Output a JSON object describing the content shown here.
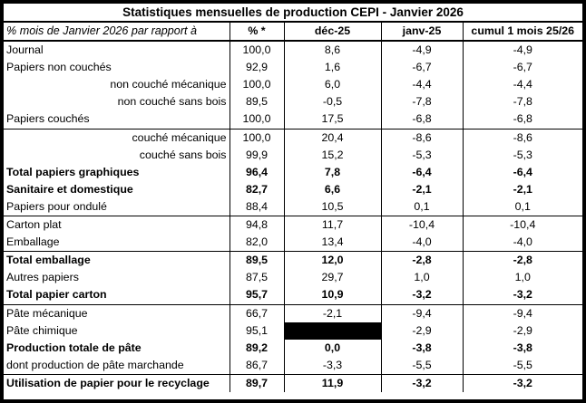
{
  "title": "Statistiques mensuelles de production CEPI - Janvier 2026",
  "colors": {
    "border": "#000000",
    "text": "#000000",
    "background": "#ffffff",
    "redacted_cell": "#000000"
  },
  "table": {
    "columns": [
      {
        "label": "% mois de Janvier 2026 par rapport à"
      },
      {
        "label": "% *"
      },
      {
        "label": "déc-25"
      },
      {
        "label": "janv-25"
      },
      {
        "label": "cumul 1 mois 25/26"
      }
    ],
    "rows": [
      {
        "label": "Journal",
        "values": [
          "100,0",
          "8,6",
          "-4,9",
          "-4,9"
        ],
        "bold": false,
        "indent": false,
        "section_start": false
      },
      {
        "label": "Papiers non couchés",
        "values": [
          "92,9",
          "1,6",
          "-6,7",
          "-6,7"
        ],
        "bold": false,
        "indent": false,
        "section_start": false
      },
      {
        "label": "non couché mécanique",
        "values": [
          "100,0",
          "6,0",
          "-4,4",
          "-4,4"
        ],
        "bold": false,
        "indent": true,
        "section_start": false
      },
      {
        "label": "non couché sans bois",
        "values": [
          "89,5",
          "-0,5",
          "-7,8",
          "-7,8"
        ],
        "bold": false,
        "indent": true,
        "section_start": false
      },
      {
        "label": "Papiers couchés",
        "values": [
          "100,0",
          "17,5",
          "-6,8",
          "-6,8"
        ],
        "bold": false,
        "indent": false,
        "section_start": false
      },
      {
        "label": "couché mécanique",
        "values": [
          "100,0",
          "20,4",
          "-8,6",
          "-8,6"
        ],
        "bold": false,
        "indent": true,
        "section_start": true
      },
      {
        "label": "couché sans bois",
        "values": [
          "99,9",
          "15,2",
          "-5,3",
          "-5,3"
        ],
        "bold": false,
        "indent": true,
        "section_start": false
      },
      {
        "label": "Total papiers graphiques",
        "values": [
          "96,4",
          "7,8",
          "-6,4",
          "-6,4"
        ],
        "bold": true,
        "indent": false,
        "section_start": false
      },
      {
        "label": "Sanitaire et domestique",
        "values": [
          "82,7",
          "6,6",
          "-2,1",
          "-2,1"
        ],
        "bold": true,
        "indent": false,
        "section_start": false
      },
      {
        "label": "Papiers pour ondulé",
        "values": [
          "88,4",
          "10,5",
          "0,1",
          "0,1"
        ],
        "bold": false,
        "indent": false,
        "section_start": false
      },
      {
        "label": "Carton plat",
        "values": [
          "94,8",
          "11,7",
          "-10,4",
          "-10,4"
        ],
        "bold": false,
        "indent": false,
        "section_start": true
      },
      {
        "label": "Emballage",
        "values": [
          "82,0",
          "13,4",
          "-4,0",
          "-4,0"
        ],
        "bold": false,
        "indent": false,
        "section_start": false
      },
      {
        "label": "Total emballage",
        "values": [
          "89,5",
          "12,0",
          "-2,8",
          "-2,8"
        ],
        "bold": true,
        "indent": false,
        "section_start": true
      },
      {
        "label": "Autres papiers",
        "values": [
          "87,5",
          "29,7",
          "1,0",
          "1,0"
        ],
        "bold": false,
        "indent": false,
        "section_start": false
      },
      {
        "label": "Total papier carton",
        "values": [
          "95,7",
          "10,9",
          "-3,2",
          "-3,2"
        ],
        "bold": true,
        "indent": false,
        "section_start": false
      },
      {
        "label": "Pâte mécanique",
        "values": [
          "66,7",
          "-2,1",
          "-9,4",
          "-9,4"
        ],
        "bold": false,
        "indent": false,
        "section_start": true
      },
      {
        "label": "Pâte chimique",
        "values": [
          "95,1",
          "",
          "-2,9",
          "-2,9"
        ],
        "bold": false,
        "indent": false,
        "section_start": false,
        "redacted_index": 1
      },
      {
        "label": "Production totale de pâte",
        "values": [
          "89,2",
          "0,0",
          "-3,8",
          "-3,8"
        ],
        "bold": true,
        "indent": false,
        "section_start": false
      },
      {
        "label": "dont production de pâte marchande",
        "values": [
          "86,7",
          "-3,3",
          "-5,5",
          "-5,5"
        ],
        "bold": false,
        "indent": false,
        "section_start": false
      },
      {
        "label": "Utilisation de papier pour le recyclage",
        "values": [
          "89,7",
          "11,9",
          "-3,2",
          "-3,2"
        ],
        "bold": true,
        "indent": false,
        "section_start": true
      }
    ]
  }
}
